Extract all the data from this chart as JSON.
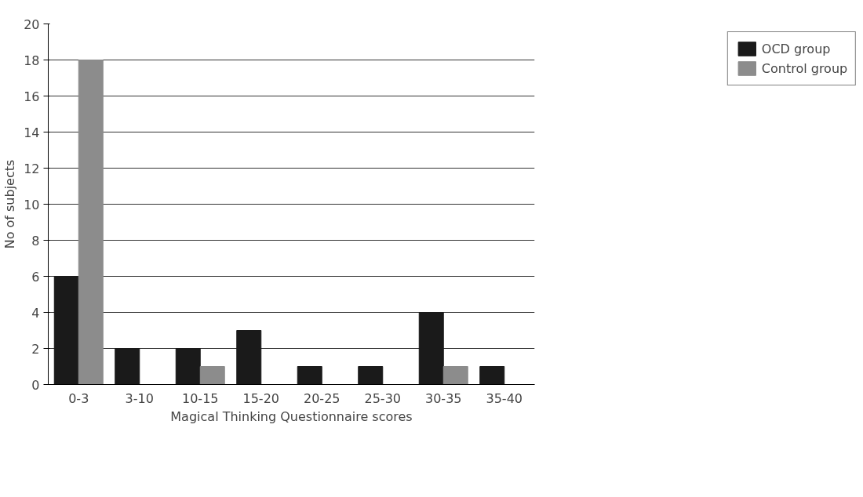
{
  "chart_data": {
    "type": "bar",
    "xlabel": "Magical Thinking Questionnaire scores",
    "ylabel": "No of subjects",
    "categories": [
      "0-3",
      "3-10",
      "10-15",
      "15-20",
      "20-25",
      "25-30",
      "30-35",
      "35-40"
    ],
    "series": [
      {
        "name": "OCD group",
        "color": "#1a1a1a",
        "values": [
          6,
          2,
          2,
          3,
          1,
          1,
          4,
          1
        ]
      },
      {
        "name": "Control group",
        "color": "#8c8c8c",
        "values": [
          18,
          0,
          1,
          0,
          0,
          0,
          1,
          0
        ]
      }
    ],
    "ylim": [
      0,
      20
    ],
    "yticks": [
      0,
      2,
      4,
      6,
      8,
      10,
      12,
      14,
      16,
      18,
      20
    ],
    "grid": "y",
    "legend": "top right"
  }
}
